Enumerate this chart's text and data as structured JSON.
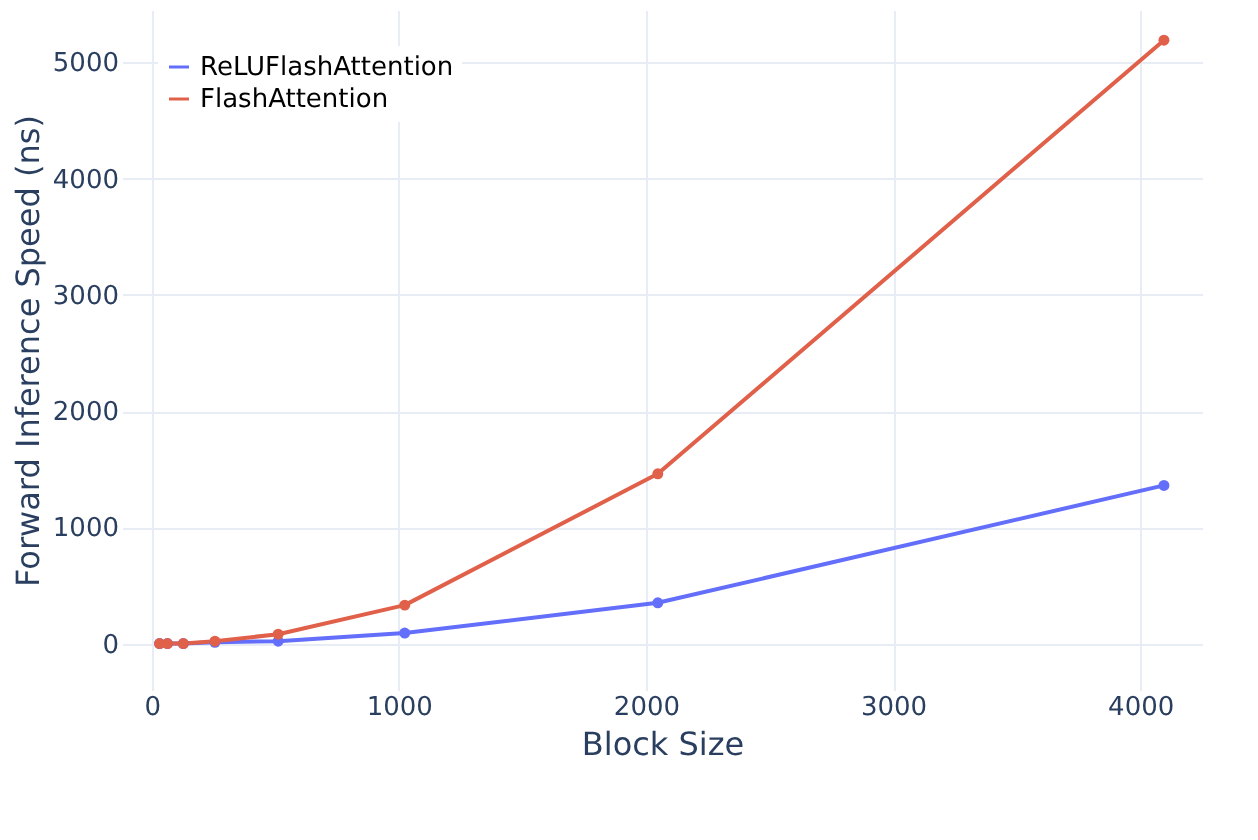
{
  "chart_data": {
    "type": "line",
    "xlabel": "Block Size",
    "ylabel": "Forward Inference Speed (ns)",
    "x": [
      32,
      64,
      128,
      256,
      512,
      1024,
      2048,
      4096
    ],
    "series": [
      {
        "name": "ReLUFlashAttention",
        "color": "#636efa",
        "values": [
          0,
          0,
          0,
          10,
          20,
          90,
          350,
          1360
        ]
      },
      {
        "name": "FlashAttention",
        "color": "#e0604a",
        "values": [
          0,
          0,
          0,
          20,
          80,
          330,
          1460,
          5190
        ]
      }
    ],
    "xlim": [
      -120,
      4250
    ],
    "xticks": [
      0,
      1000,
      2000,
      3000,
      4000
    ],
    "ylim": [
      -400,
      5450
    ],
    "yticks": [
      0,
      1000,
      2000,
      3000,
      4000,
      5000
    ],
    "grid": true,
    "legend": "top left",
    "marker": "circle",
    "line_style": "solid"
  }
}
